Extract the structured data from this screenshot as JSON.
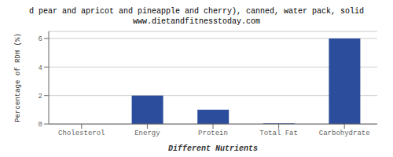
{
  "chart_data": {
    "type": "bar",
    "title": "d pear and apricot and pineapple and cherry), canned, water pack, solid",
    "subtitle": "www.dietandfitnesstoday.com",
    "xlabel": "Different Nutrients",
    "ylabel": "Percentage of RDH (%)",
    "categories": [
      "Cholesterol",
      "Energy",
      "Protein",
      "Total Fat",
      "Carbohydrate"
    ],
    "values": [
      0,
      2.0,
      1.0,
      0.05,
      6.0
    ],
    "color": "#2b4d9c",
    "ylim": [
      0,
      6.5
    ],
    "yticks": [
      0,
      2,
      4,
      6
    ],
    "grid": true
  }
}
